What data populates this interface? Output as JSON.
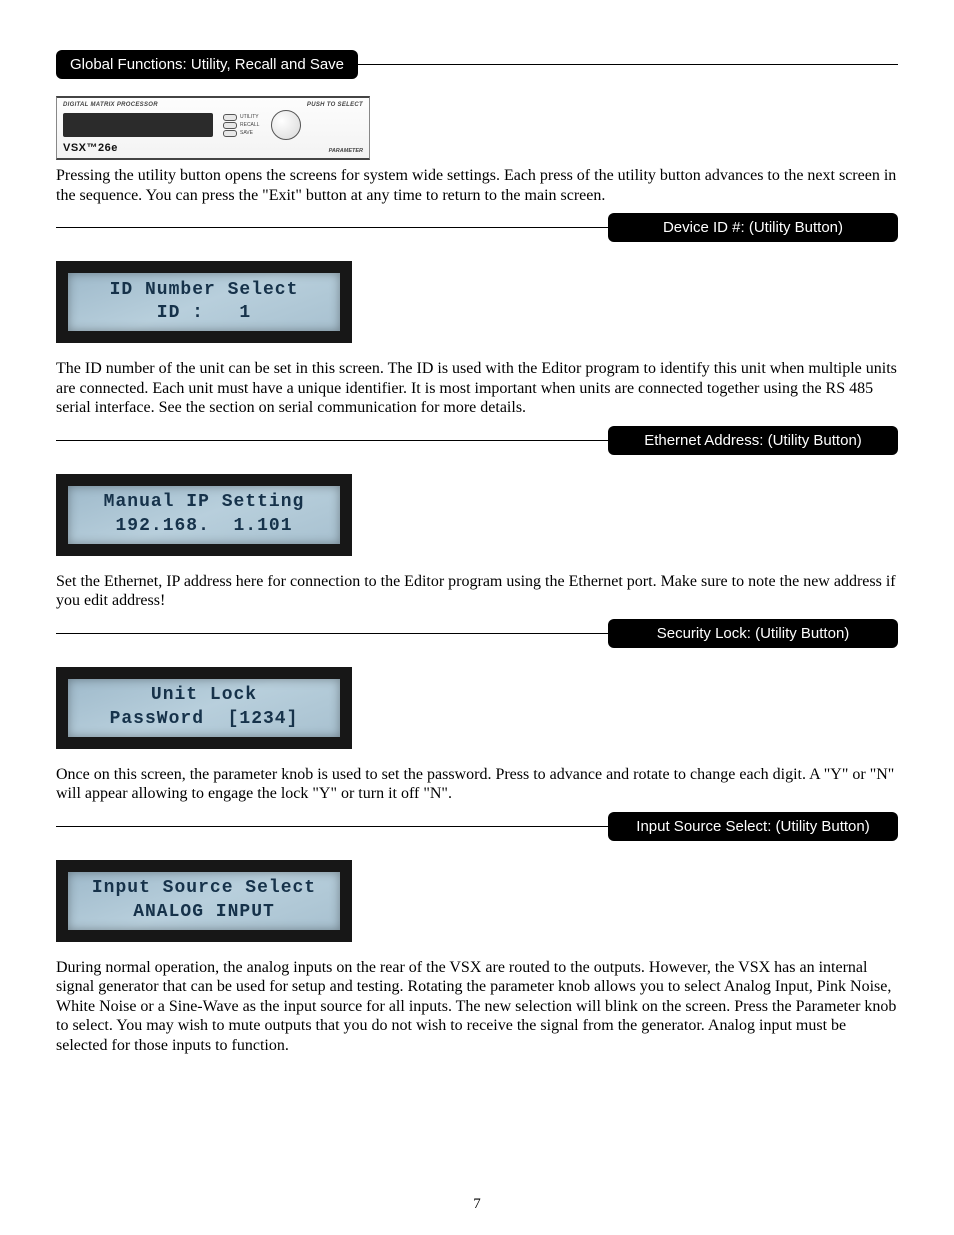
{
  "page_number": "7",
  "header_title": "Global Functions: Utility, Recall and Save",
  "device_panel": {
    "top_left": "DIGITAL MATRIX PROCESSOR",
    "top_right": "PUSH TO SELECT",
    "model": "VSX™26e",
    "buttons": [
      "UTILITY",
      "RECALL",
      "SAVE"
    ],
    "parameter_label": "PARAMETER"
  },
  "intro_text": "Pressing the utility button opens the screens for system wide settings.  Each press of the utility button advances to the next screen in the sequence.  You can press the \"Exit\" button at any time to return to the main screen.",
  "sections": [
    {
      "title": "Device ID #: (Utility Button)",
      "lcd_line1": "ID Number Select",
      "lcd_line2": "ID :   1",
      "body": "The ID number of the unit can be set in this screen.  The ID is used with the Editor program to identify this unit when multiple units are connected.  Each unit must have a unique identifier.  It is most important when units are connected together using the RS 485 serial interface.  See the section on serial communication for more details."
    },
    {
      "title": "Ethernet Address: (Utility Button)",
      "lcd_line1": "Manual IP Setting",
      "lcd_line2": "192.168.  1.101",
      "body": "Set the Ethernet, IP address here for connection to the Editor program using the Ethernet port. Make sure to note the new address if you edit address!"
    },
    {
      "title": "Security Lock: (Utility Button)",
      "lcd_line1": "Unit Lock",
      "lcd_line2": "PassWord  [1234]",
      "body": "Once on this screen, the parameter knob is used to set the password.  Press to advance and rotate to change each digit.  A \"Y\" or \"N\" will appear allowing to engage the lock \"Y\" or turn it off \"N\"."
    },
    {
      "title": "Input Source Select: (Utility Button)",
      "lcd_line1": "Input Source Select",
      "lcd_line2": "ANALOG INPUT",
      "body": "During normal operation, the analog inputs on the rear of the VSX are routed to the outputs.  However, the VSX has an internal signal generator that can be used for setup and testing.  Rotating the parameter knob allows you to select Analog Input, Pink Noise, White Noise or a Sine-Wave as the input source for all inputs.  The new selection will blink on the screen.  Press the Parameter knob to select.  You may wish to mute outputs that you do not wish to receive the signal from the generator.   Analog input must be selected for those inputs to function."
    }
  ]
}
